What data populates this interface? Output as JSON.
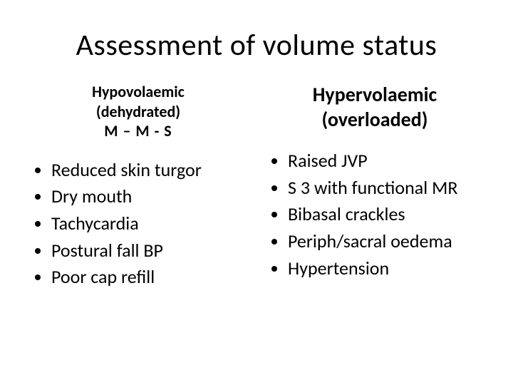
{
  "title": "Assessment of volume status",
  "left": {
    "heading_line1": "Hypovolaemic",
    "heading_line2": "(dehydrated)",
    "heading_line3": "M – M - S",
    "items": [
      "Reduced skin turgor",
      "Dry mouth",
      "Tachycardia",
      "Postural fall BP",
      "Poor cap refill"
    ]
  },
  "right": {
    "heading_line1": "Hypervolaemic",
    "heading_line2": "(overloaded)",
    "items": [
      "Raised JVP",
      "S 3 with functional MR",
      "Bibasal crackles",
      "Periph/sacral oedema",
      "Hypertension"
    ]
  },
  "style": {
    "background_color": "#ffffff",
    "text_color": "#000000",
    "title_fontsize": 42,
    "subhead_left_fontsize": 22,
    "subhead_right_fontsize": 28,
    "bullet_fontsize": 26,
    "font_family": "Calibri"
  }
}
